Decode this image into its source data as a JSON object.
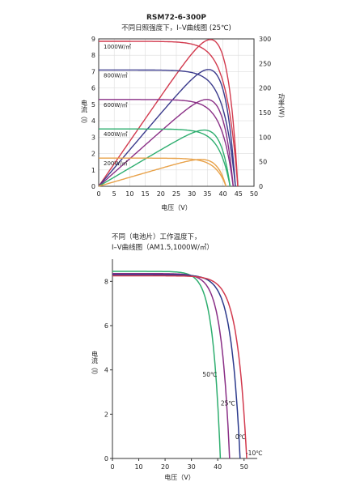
{
  "chart_data": [
    {
      "type": "line",
      "title": "RSM72-6-300P",
      "subtitle": "不同日照强度下，I–V曲线图 (25℃)",
      "xlabel": "电压（V）",
      "ylabel": "电流（I）",
      "ylabel2": "功率(W)",
      "xlim": [
        0,
        50
      ],
      "ylim": [
        0,
        9
      ],
      "y2lim": [
        0,
        300
      ],
      "x_ticks": [
        "0",
        "5",
        "10",
        "15",
        "20",
        "25",
        "30",
        "35",
        "40",
        "45",
        "50"
      ],
      "y_ticks": [
        "0",
        "1",
        "2",
        "3",
        "4",
        "5",
        "6",
        "7",
        "8",
        "9"
      ],
      "y2_ticks": [
        "0",
        "50",
        "100",
        "150",
        "200",
        "250",
        "300"
      ],
      "grid": true,
      "series": [
        {
          "name": "1000W/㎡",
          "color": "#d23a4e",
          "isc": 8.85,
          "voc": 44.8,
          "vmp": 36.2,
          "imp": 8.25
        },
        {
          "name": "800W/㎡",
          "color": "#3a3a8c",
          "isc": 7.1,
          "voc": 44.0,
          "vmp": 36.0,
          "imp": 6.6
        },
        {
          "name": "600W/㎡",
          "color": "#8a2f86",
          "isc": 5.3,
          "voc": 43.3,
          "vmp": 35.7,
          "imp": 4.95
        },
        {
          "name": "400W/㎡",
          "color": "#2eae6f",
          "isc": 3.5,
          "voc": 42.3,
          "vmp": 35.2,
          "imp": 3.25
        },
        {
          "name": "200W/㎡",
          "color": "#e8a24a",
          "isc": 1.72,
          "voc": 41.0,
          "vmp": 34.6,
          "imp": 1.58
        }
      ]
    },
    {
      "type": "line",
      "title": "不同（电池片）工作温度下，",
      "subtitle": "I–V曲线图（AM1.5,1000W/㎡）",
      "xlabel": "电压（V）",
      "ylabel": "电流（I）",
      "xlim": [
        0,
        55
      ],
      "ylim": [
        0,
        9
      ],
      "x_ticks": [
        "0",
        "10",
        "20",
        "30",
        "40",
        "50"
      ],
      "y_ticks": [
        "0",
        "2",
        "4",
        "6",
        "8"
      ],
      "grid": false,
      "series": [
        {
          "name": "50℃",
          "color": "#2eae6f",
          "isc": 8.45,
          "voc": 41.0
        },
        {
          "name": "25℃",
          "color": "#8a2f86",
          "isc": 8.35,
          "voc": 44.5
        },
        {
          "name": "0℃",
          "color": "#2c3a8c",
          "isc": 8.3,
          "voc": 48.5
        },
        {
          "name": "-10℃",
          "color": "#d23a4e",
          "isc": 8.25,
          "voc": 51.0
        }
      ]
    }
  ]
}
